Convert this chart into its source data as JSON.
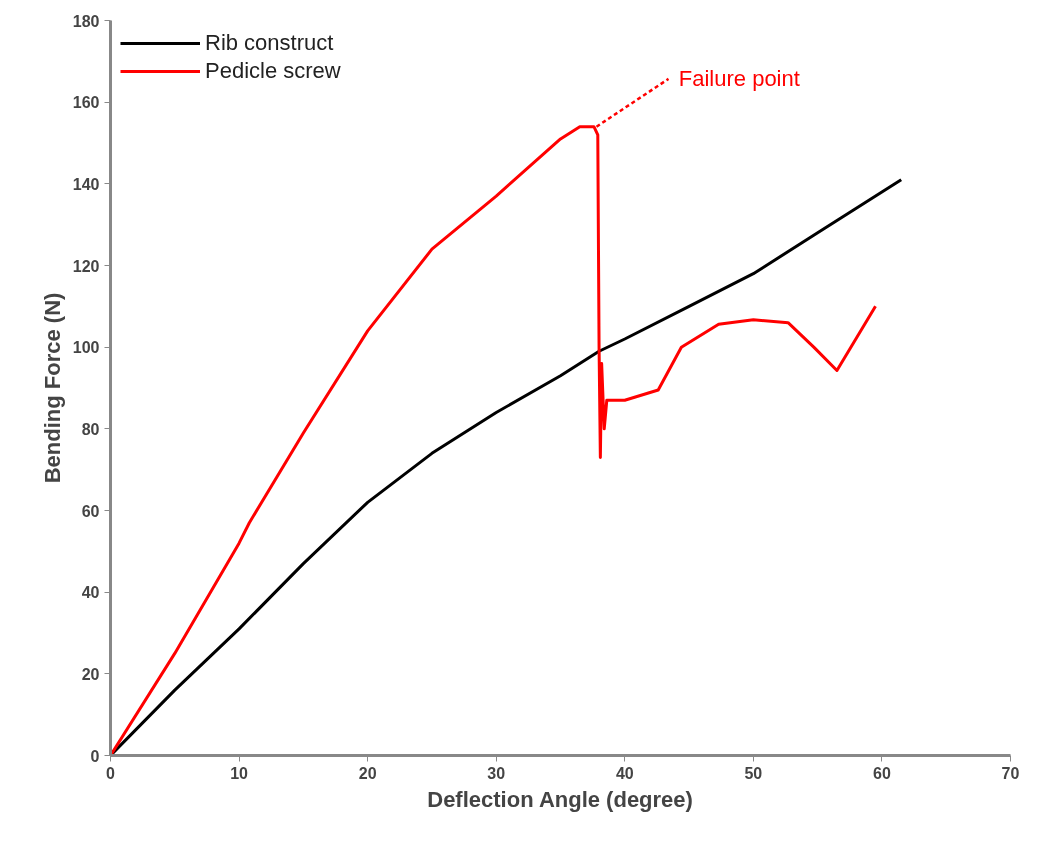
{
  "chart_data": {
    "type": "line",
    "xlabel": "Deflection Angle (degree)",
    "ylabel": "Bending Force (N)",
    "xlim": [
      0,
      70
    ],
    "ylim": [
      0,
      180
    ],
    "xticks": [
      0,
      10,
      20,
      30,
      40,
      50,
      60,
      70
    ],
    "yticks": [
      0,
      20,
      40,
      60,
      80,
      100,
      120,
      140,
      160,
      180
    ],
    "grid": false,
    "legend": "top left",
    "marker": "none",
    "line_style": "solid",
    "series": [
      {
        "name": "Rib construct",
        "color": "#000000",
        "x": [
          0,
          5,
          10,
          15,
          20,
          25,
          30,
          35,
          38,
          40,
          45,
          50,
          55,
          61.5
        ],
        "values": [
          0,
          16,
          31,
          47,
          62,
          74,
          84,
          93,
          99,
          102,
          110,
          118,
          128,
          141
        ]
      },
      {
        "name": "Pedicle screw",
        "color": "#ff0000",
        "x": [
          0,
          5,
          10,
          10.8,
          15,
          20,
          25,
          30,
          35,
          36.5,
          37.6,
          37.9,
          38.0,
          38.1,
          38.2,
          38.4,
          38.6,
          40,
          42.6,
          44.4,
          47.3,
          50,
          52.7,
          54.7,
          56.5,
          59.5
        ],
        "values": [
          0,
          25,
          52,
          57,
          79,
          104,
          124,
          137,
          151,
          154,
          154,
          152,
          100,
          73,
          96,
          80,
          87,
          87,
          89.5,
          100,
          105.6,
          106.7,
          106,
          100,
          94.3,
          110
        ]
      }
    ],
    "annotations": [
      {
        "text": "Failure point",
        "x": 37.8,
        "y": 154
      }
    ]
  }
}
